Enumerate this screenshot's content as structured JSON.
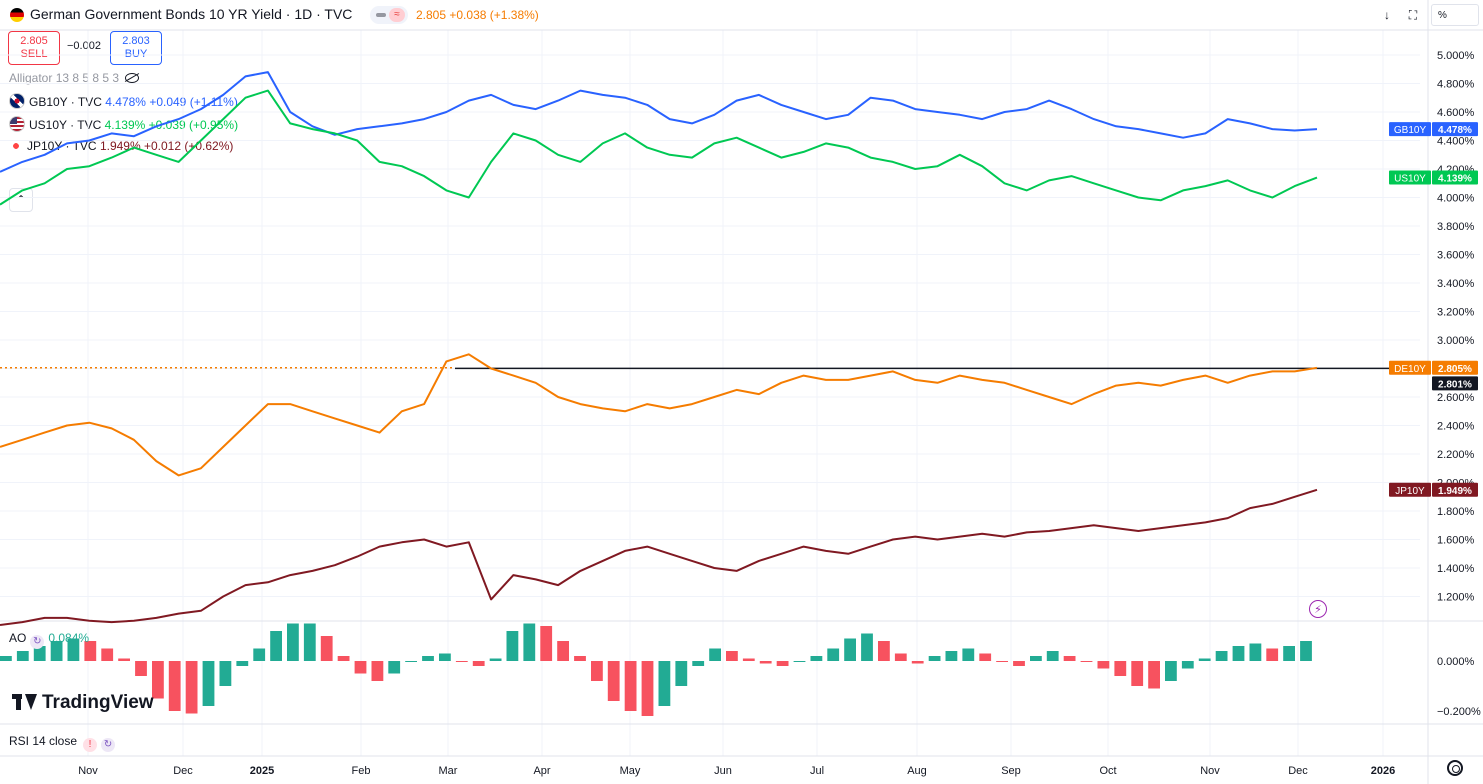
{
  "header": {
    "title": "German Government Bonds 10 YR Yield · 1D · TVC",
    "quote": "2.805",
    "change": "+0.038",
    "change_pct": "(+1.38%)",
    "wave_symbol": "≈"
  },
  "trade": {
    "sell_price": "2.805",
    "sell_label": "SELL",
    "spread": "−0.002",
    "buy_price": "2.803",
    "buy_label": "BUY"
  },
  "indicator_alligator": "Alligator 13 8 5 8 5 3",
  "legend": [
    {
      "symbol": "GB10Y · TVC",
      "value": "4.478%",
      "change": "+0.049",
      "pct": "(+1.11%)",
      "color": "#2962ff",
      "flag": "gb-flag-icon"
    },
    {
      "symbol": "US10Y · TVC",
      "value": "4.139%",
      "change": "+0.039",
      "pct": "(+0.95%)",
      "color": "#00c853",
      "flag": "us-flag-icon"
    },
    {
      "symbol": "JP10Y · TVC",
      "value": "1.949%",
      "change": "+0.012",
      "pct": "(+0.62%)",
      "color": "#801922",
      "flag": "jp-flag-icon"
    }
  ],
  "axis_unit": "%",
  "ao": {
    "label": "AO",
    "value": "0.084%",
    "ticks": [
      "0.000%",
      "−0.200%"
    ],
    "up_color": "#22ab94",
    "down_color": "#f7525f"
  },
  "rsi": {
    "label": "RSI 14 close",
    "warn": "!"
  },
  "brand": "TradingView",
  "time_labels": [
    "Nov",
    "Dec",
    "2025",
    "Feb",
    "Mar",
    "Apr",
    "May",
    "Jun",
    "Jul",
    "Aug",
    "Sep",
    "Oct",
    "Nov",
    "Dec",
    "2026"
  ],
  "chart_data": {
    "type": "line",
    "title": "German Government Bonds 10 YR Yield · 1D · TVC",
    "ylabel": "%",
    "y_ticks": [
      "5.000%",
      "4.800%",
      "4.600%",
      "4.400%",
      "4.200%",
      "4.000%",
      "3.800%",
      "3.600%",
      "3.400%",
      "3.200%",
      "3.000%",
      "2.800%",
      "2.600%",
      "2.400%",
      "2.200%",
      "2.000%",
      "1.800%",
      "1.600%",
      "1.400%",
      "1.200%"
    ],
    "series": [
      {
        "name": "GB10Y",
        "label": "GB10Y",
        "last": "4.478%",
        "color": "#2962ff",
        "values": [
          4.18,
          4.25,
          4.3,
          4.38,
          4.4,
          4.45,
          4.43,
          4.5,
          4.55,
          4.62,
          4.72,
          4.85,
          4.88,
          4.6,
          4.5,
          4.44,
          4.48,
          4.5,
          4.52,
          4.55,
          4.6,
          4.68,
          4.72,
          4.65,
          4.62,
          4.68,
          4.75,
          4.72,
          4.7,
          4.65,
          4.55,
          4.52,
          4.58,
          4.68,
          4.72,
          4.65,
          4.6,
          4.55,
          4.58,
          4.7,
          4.68,
          4.62,
          4.6,
          4.58,
          4.55,
          4.6,
          4.62,
          4.68,
          4.62,
          4.55,
          4.5,
          4.48,
          4.45,
          4.42,
          4.45,
          4.55,
          4.52,
          4.48,
          4.47,
          4.48
        ]
      },
      {
        "name": "US10Y",
        "label": "US10Y",
        "last": "4.139%",
        "color": "#00c853",
        "values": [
          3.95,
          4.05,
          4.1,
          4.2,
          4.22,
          4.28,
          4.35,
          4.3,
          4.25,
          4.4,
          4.55,
          4.7,
          4.75,
          4.52,
          4.48,
          4.45,
          4.4,
          4.25,
          4.22,
          4.15,
          4.05,
          4.0,
          4.25,
          4.45,
          4.4,
          4.3,
          4.25,
          4.38,
          4.45,
          4.35,
          4.3,
          4.28,
          4.38,
          4.42,
          4.35,
          4.28,
          4.32,
          4.38,
          4.35,
          4.28,
          4.25,
          4.2,
          4.22,
          4.3,
          4.22,
          4.1,
          4.05,
          4.12,
          4.15,
          4.1,
          4.05,
          4.0,
          3.98,
          4.05,
          4.08,
          4.12,
          4.05,
          4.0,
          4.08,
          4.14
        ]
      },
      {
        "name": "DE10Y",
        "label": "DE10Y",
        "last": "2.805%",
        "color": "#f57c00",
        "values": [
          2.25,
          2.3,
          2.35,
          2.4,
          2.42,
          2.38,
          2.3,
          2.15,
          2.05,
          2.1,
          2.25,
          2.4,
          2.55,
          2.55,
          2.5,
          2.45,
          2.4,
          2.35,
          2.5,
          2.55,
          2.85,
          2.9,
          2.8,
          2.75,
          2.7,
          2.6,
          2.55,
          2.52,
          2.5,
          2.55,
          2.52,
          2.55,
          2.6,
          2.65,
          2.62,
          2.7,
          2.75,
          2.72,
          2.72,
          2.75,
          2.78,
          2.72,
          2.7,
          2.75,
          2.72,
          2.7,
          2.65,
          2.6,
          2.55,
          2.62,
          2.68,
          2.7,
          2.68,
          2.72,
          2.75,
          2.7,
          2.75,
          2.78,
          2.78,
          2.805
        ]
      },
      {
        "name": "JP10Y",
        "label": "JP10Y",
        "last": "1.949%",
        "color": "#801922",
        "values": [
          1.0,
          1.02,
          1.05,
          1.05,
          1.03,
          1.02,
          1.03,
          1.05,
          1.08,
          1.1,
          1.2,
          1.28,
          1.3,
          1.35,
          1.38,
          1.42,
          1.48,
          1.55,
          1.58,
          1.6,
          1.55,
          1.58,
          1.18,
          1.35,
          1.32,
          1.28,
          1.38,
          1.45,
          1.52,
          1.55,
          1.5,
          1.45,
          1.4,
          1.38,
          1.45,
          1.5,
          1.55,
          1.52,
          1.5,
          1.55,
          1.6,
          1.62,
          1.6,
          1.62,
          1.64,
          1.62,
          1.65,
          1.66,
          1.68,
          1.7,
          1.68,
          1.66,
          1.68,
          1.7,
          1.72,
          1.75,
          1.82,
          1.85,
          1.9,
          1.949
        ]
      }
    ],
    "reference_line": {
      "value": 2.801,
      "label": "2.801%",
      "color": "#131722"
    },
    "ao_values": [
      0.02,
      0.04,
      0.06,
      0.08,
      0.09,
      0.08,
      0.05,
      0.01,
      -0.06,
      -0.15,
      -0.2,
      -0.21,
      -0.18,
      -0.1,
      -0.02,
      0.05,
      0.12,
      0.15,
      0.15,
      0.1,
      0.02,
      -0.05,
      -0.08,
      -0.05,
      0.0,
      0.02,
      0.03,
      0.0,
      -0.02,
      0.01,
      0.12,
      0.15,
      0.14,
      0.08,
      0.02,
      -0.08,
      -0.16,
      -0.2,
      -0.22,
      -0.18,
      -0.1,
      -0.02,
      0.05,
      0.04,
      0.01,
      -0.01,
      -0.02,
      0.0,
      0.02,
      0.05,
      0.09,
      0.11,
      0.08,
      0.03,
      -0.01,
      0.02,
      0.04,
      0.05,
      0.03,
      0.0,
      -0.02,
      0.02,
      0.04,
      0.02,
      0.0,
      -0.03,
      -0.06,
      -0.1,
      -0.11,
      -0.08,
      -0.03,
      0.01,
      0.04,
      0.06,
      0.07,
      0.05,
      0.06,
      0.08
    ]
  }
}
